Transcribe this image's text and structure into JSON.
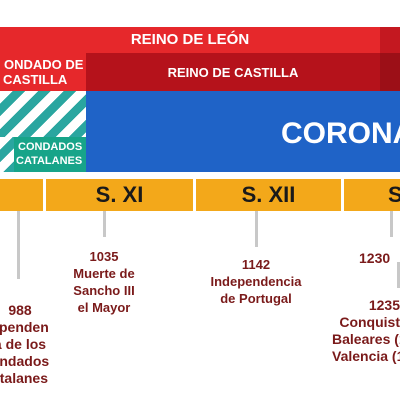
{
  "bands": {
    "leon": "REINO DE LEÓN",
    "condado_castilla_1": "ONDADO DE",
    "condado_castilla_2": "CASTILLA",
    "castilla": "REINO DE CASTILLA",
    "condados_1": "CONDADOS",
    "condados_2": "CATALANES",
    "corona": "CORONA"
  },
  "colors": {
    "leon_red": "#e6282b",
    "castilla_red": "#b5121b",
    "corona_blue": "#1f63c7",
    "catalanes_green": "#17a489",
    "century_orange": "#f3a81a",
    "event_text": "#7a1a1a"
  },
  "centuries": [
    "S. XI",
    "S. XII",
    "S"
  ],
  "events": {
    "e988": [
      "988",
      "ependen",
      "a de los",
      "ondados",
      "atalanes"
    ],
    "e1035": [
      "1035",
      "Muerte de",
      "Sancho III",
      "el Mayor"
    ],
    "e1142": [
      "1142",
      "Independencia",
      "de Portugal"
    ],
    "e1230": [
      "1230"
    ],
    "e1235": [
      "1235",
      "Conquist",
      "Baleares (1",
      "Valencia (1"
    ]
  }
}
